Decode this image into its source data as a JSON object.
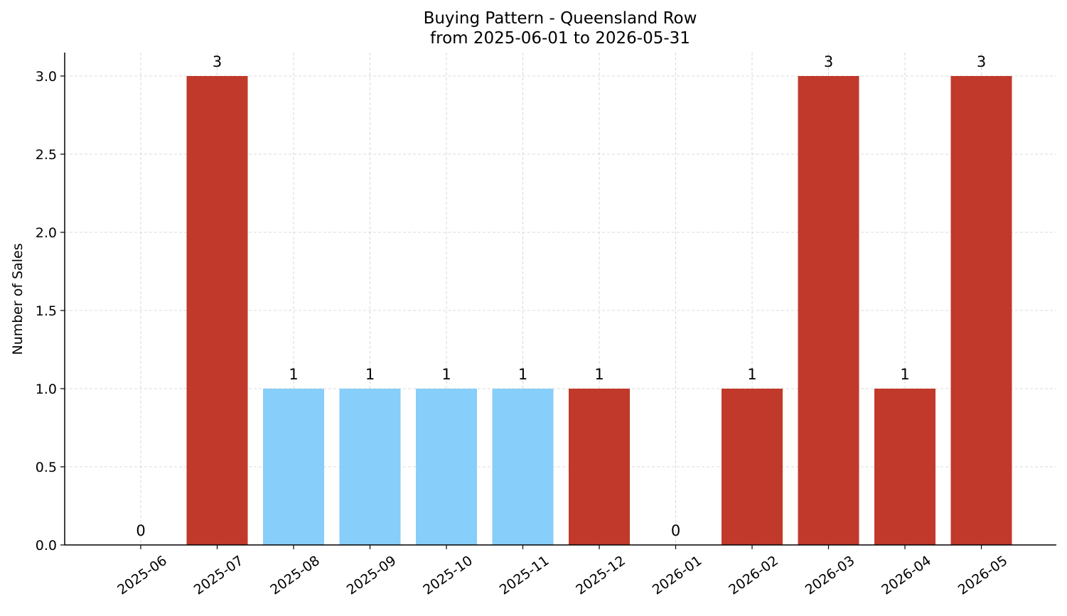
{
  "chart_data": {
    "type": "bar",
    "title": "Buying Pattern - Queensland Row",
    "subtitle": "from 2025-06-01 to 2026-05-31",
    "xlabel": "",
    "ylabel": "Number of Sales",
    "categories": [
      "2025-06",
      "2025-07",
      "2025-08",
      "2025-09",
      "2025-10",
      "2025-11",
      "2025-12",
      "2026-01",
      "2026-02",
      "2026-03",
      "2026-04",
      "2026-05"
    ],
    "values": [
      0,
      3,
      1,
      1,
      1,
      1,
      1,
      0,
      1,
      3,
      1,
      3
    ],
    "bar_colors": [
      "#c0392b",
      "#c0392b",
      "#87cefa",
      "#87cefa",
      "#87cefa",
      "#87cefa",
      "#c0392b",
      "#c0392b",
      "#c0392b",
      "#c0392b",
      "#c0392b",
      "#c0392b"
    ],
    "data_labels": [
      "0",
      "3",
      "1",
      "1",
      "1",
      "1",
      "1",
      "0",
      "1",
      "3",
      "1",
      "3"
    ],
    "yticks": [
      0.0,
      0.5,
      1.0,
      1.5,
      2.0,
      2.5,
      3.0
    ],
    "ytick_labels": [
      "0.0",
      "0.5",
      "1.0",
      "1.5",
      "2.0",
      "2.5",
      "3.0"
    ],
    "ylim": [
      0,
      3.15
    ],
    "grid": true,
    "legend": "none",
    "colors": {
      "accent_red": "#c0392b",
      "accent_blue": "#87cefa",
      "grid": "#d0d0d0",
      "axis": "#000000"
    }
  }
}
